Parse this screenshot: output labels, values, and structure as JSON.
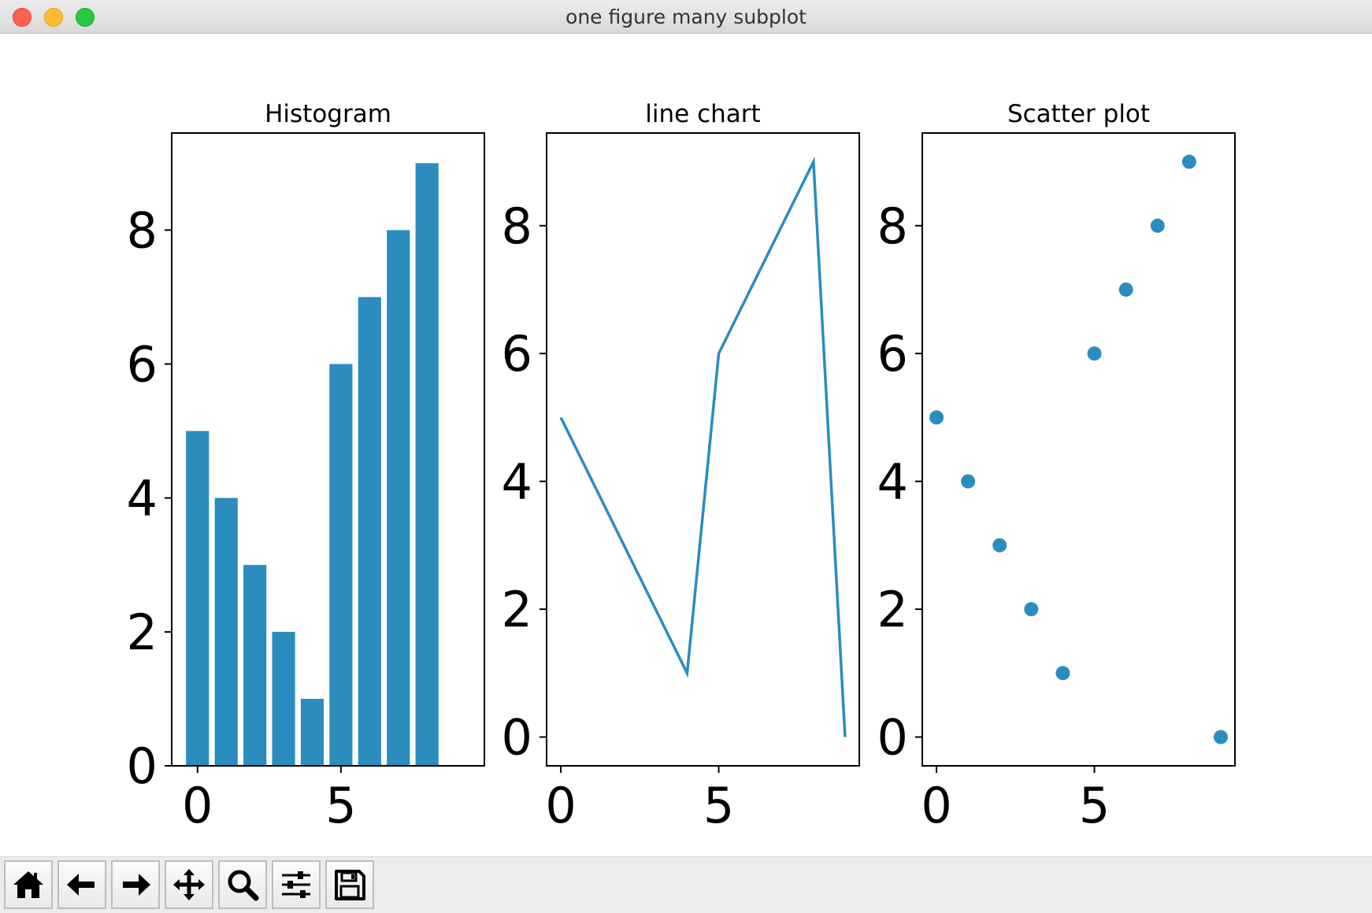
{
  "window": {
    "title": "one figure many subplot"
  },
  "toolbar": {
    "buttons": [
      {
        "icon": "home-icon"
      },
      {
        "icon": "back-arrow-icon"
      },
      {
        "icon": "forward-arrow-icon"
      },
      {
        "icon": "pan-icon"
      },
      {
        "icon": "zoom-icon"
      },
      {
        "icon": "sliders-icon"
      },
      {
        "icon": "save-icon"
      }
    ]
  },
  "colors": {
    "series": "#2b8cbe",
    "axes": "#000000",
    "background": "#ffffff"
  },
  "chart_data": [
    {
      "type": "bar",
      "title": "Histogram",
      "xlabel": "",
      "ylabel": "",
      "x": [
        0,
        1,
        2,
        3,
        4,
        5,
        6,
        7,
        8
      ],
      "values": [
        5,
        4,
        3,
        2,
        1,
        6,
        7,
        8,
        9
      ],
      "xlim": [
        -0.9,
        10.0
      ],
      "ylim": [
        0,
        9.45
      ],
      "xticks": [
        0,
        5
      ],
      "yticks": [
        0,
        2,
        4,
        6,
        8
      ],
      "grid": false
    },
    {
      "type": "line",
      "title": "line chart",
      "xlabel": "",
      "ylabel": "",
      "x": [
        0,
        4,
        5,
        8,
        9
      ],
      "values": [
        5,
        1,
        6,
        9,
        0
      ],
      "xlim": [
        -0.45,
        9.45
      ],
      "ylim": [
        -0.45,
        9.45
      ],
      "xticks": [
        0,
        5
      ],
      "yticks": [
        0,
        2,
        4,
        6,
        8
      ],
      "grid": false
    },
    {
      "type": "scatter",
      "title": "Scatter plot",
      "xlabel": "",
      "ylabel": "",
      "x": [
        0,
        1,
        2,
        3,
        4,
        5,
        6,
        7,
        8,
        9
      ],
      "values": [
        5,
        4,
        3,
        2,
        1,
        6,
        7,
        8,
        9,
        0
      ],
      "xlim": [
        -0.45,
        9.45
      ],
      "ylim": [
        -0.45,
        9.45
      ],
      "xticks": [
        0,
        5
      ],
      "yticks": [
        0,
        2,
        4,
        6,
        8
      ],
      "grid": false
    }
  ]
}
